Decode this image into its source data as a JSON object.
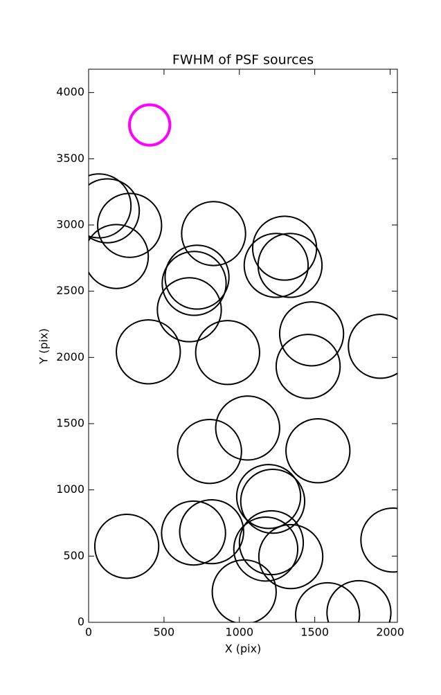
{
  "chart_data": {
    "type": "scatter",
    "title": "FWHM of PSF sources",
    "xlabel": "X (pix)",
    "ylabel": "Y (pix)",
    "xlim": [
      0,
      2048
    ],
    "ylim": [
      0,
      4176
    ],
    "xticks": [
      0,
      500,
      1000,
      1500,
      2000
    ],
    "yticks": [
      0,
      500,
      1000,
      1500,
      2000,
      2500,
      3000,
      3500,
      4000
    ],
    "series": [
      {
        "color": "#000000",
        "linewidth": 2,
        "x": [
          69,
          124,
          272,
          184,
          829,
          1300,
          1244,
          1336,
          719,
          700,
          668,
          396,
          922,
          1479,
          1456,
          1935,
          1055,
          802,
          1521,
          1194,
          1221,
          253,
          696,
          816,
          1175,
          1212,
          1341,
          1032,
          1585,
          1793,
          2018
        ],
        "values": [
          3144,
          3107,
          2997,
          2762,
          2935,
          2825,
          2695,
          2695,
          2606,
          2559,
          2360,
          2042,
          2037,
          2178,
          1932,
          2084,
          1467,
          1290,
          1295,
          950,
          914,
          574,
          674,
          684,
          553,
          601,
          496,
          230,
          57,
          73,
          621
        ],
        "sizes": [
          212,
          212,
          212,
          212,
          212,
          212,
          212,
          212,
          212,
          212,
          212,
          212,
          212,
          212,
          212,
          212,
          212,
          212,
          212,
          212,
          212,
          212,
          212,
          212,
          212,
          212,
          212,
          212,
          212,
          212,
          212
        ]
      },
      {
        "color": "#ff00ff",
        "linewidth": 4,
        "x": [
          405
        ],
        "values": [
          3755
        ],
        "sizes": [
          134
        ]
      }
    ]
  }
}
